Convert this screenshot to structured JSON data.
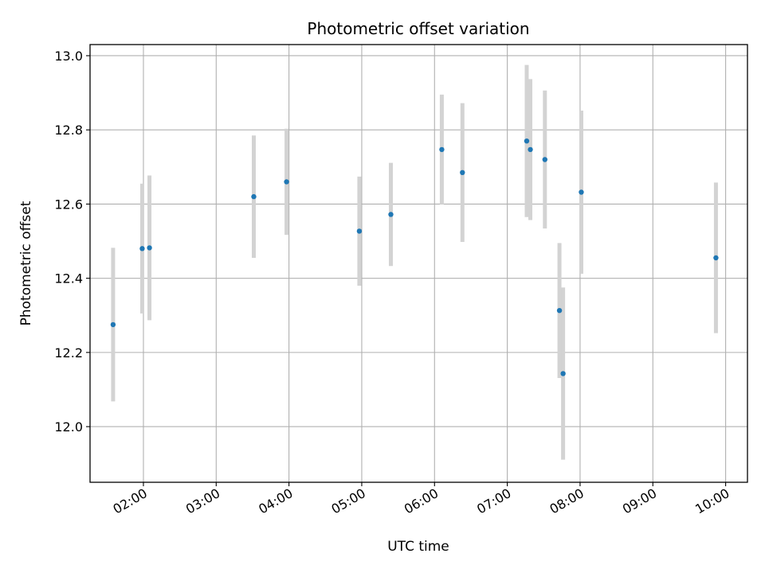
{
  "chart_data": {
    "type": "scatter",
    "title": "Photometric offset variation",
    "xlabel": "UTC time",
    "ylabel": "Photometric offset",
    "x_ticks": [
      "02:00",
      "03:00",
      "04:00",
      "05:00",
      "06:00",
      "07:00",
      "08:00",
      "09:00",
      "10:00"
    ],
    "y_ticks": [
      "12.0",
      "12.2",
      "12.4",
      "12.6",
      "12.8",
      "13.0"
    ],
    "xlim": [
      "01:16",
      "10:18"
    ],
    "ylim": [
      11.85,
      13.03
    ],
    "grid": true,
    "colors": {
      "points": "#1f77b4",
      "errorbars": "#d3d3d3",
      "grid": "#b0b0b0"
    },
    "series": [
      {
        "points": [
          {
            "x": "01:35",
            "y": 12.275,
            "err": 0.207
          },
          {
            "x": "01:59",
            "y": 12.48,
            "err": 0.175
          },
          {
            "x": "02:05",
            "y": 12.482,
            "err": 0.195
          },
          {
            "x": "03:31",
            "y": 12.62,
            "err": 0.165
          },
          {
            "x": "03:58",
            "y": 12.66,
            "err": 0.143
          },
          {
            "x": "04:58",
            "y": 12.527,
            "err": 0.147
          },
          {
            "x": "05:24",
            "y": 12.572,
            "err": 0.139
          },
          {
            "x": "06:06",
            "y": 12.747,
            "err": 0.148
          },
          {
            "x": "06:23",
            "y": 12.685,
            "err": 0.187
          },
          {
            "x": "07:16",
            "y": 12.77,
            "err": 0.205
          },
          {
            "x": "07:19",
            "y": 12.747,
            "err": 0.19
          },
          {
            "x": "07:31",
            "y": 12.72,
            "err": 0.186
          },
          {
            "x": "07:43",
            "y": 12.313,
            "err": 0.182
          },
          {
            "x": "07:46",
            "y": 12.143,
            "err": 0.232
          },
          {
            "x": "08:01",
            "y": 12.632,
            "err": 0.22
          },
          {
            "x": "09:52",
            "y": 12.455,
            "err": 0.203
          }
        ]
      }
    ]
  }
}
